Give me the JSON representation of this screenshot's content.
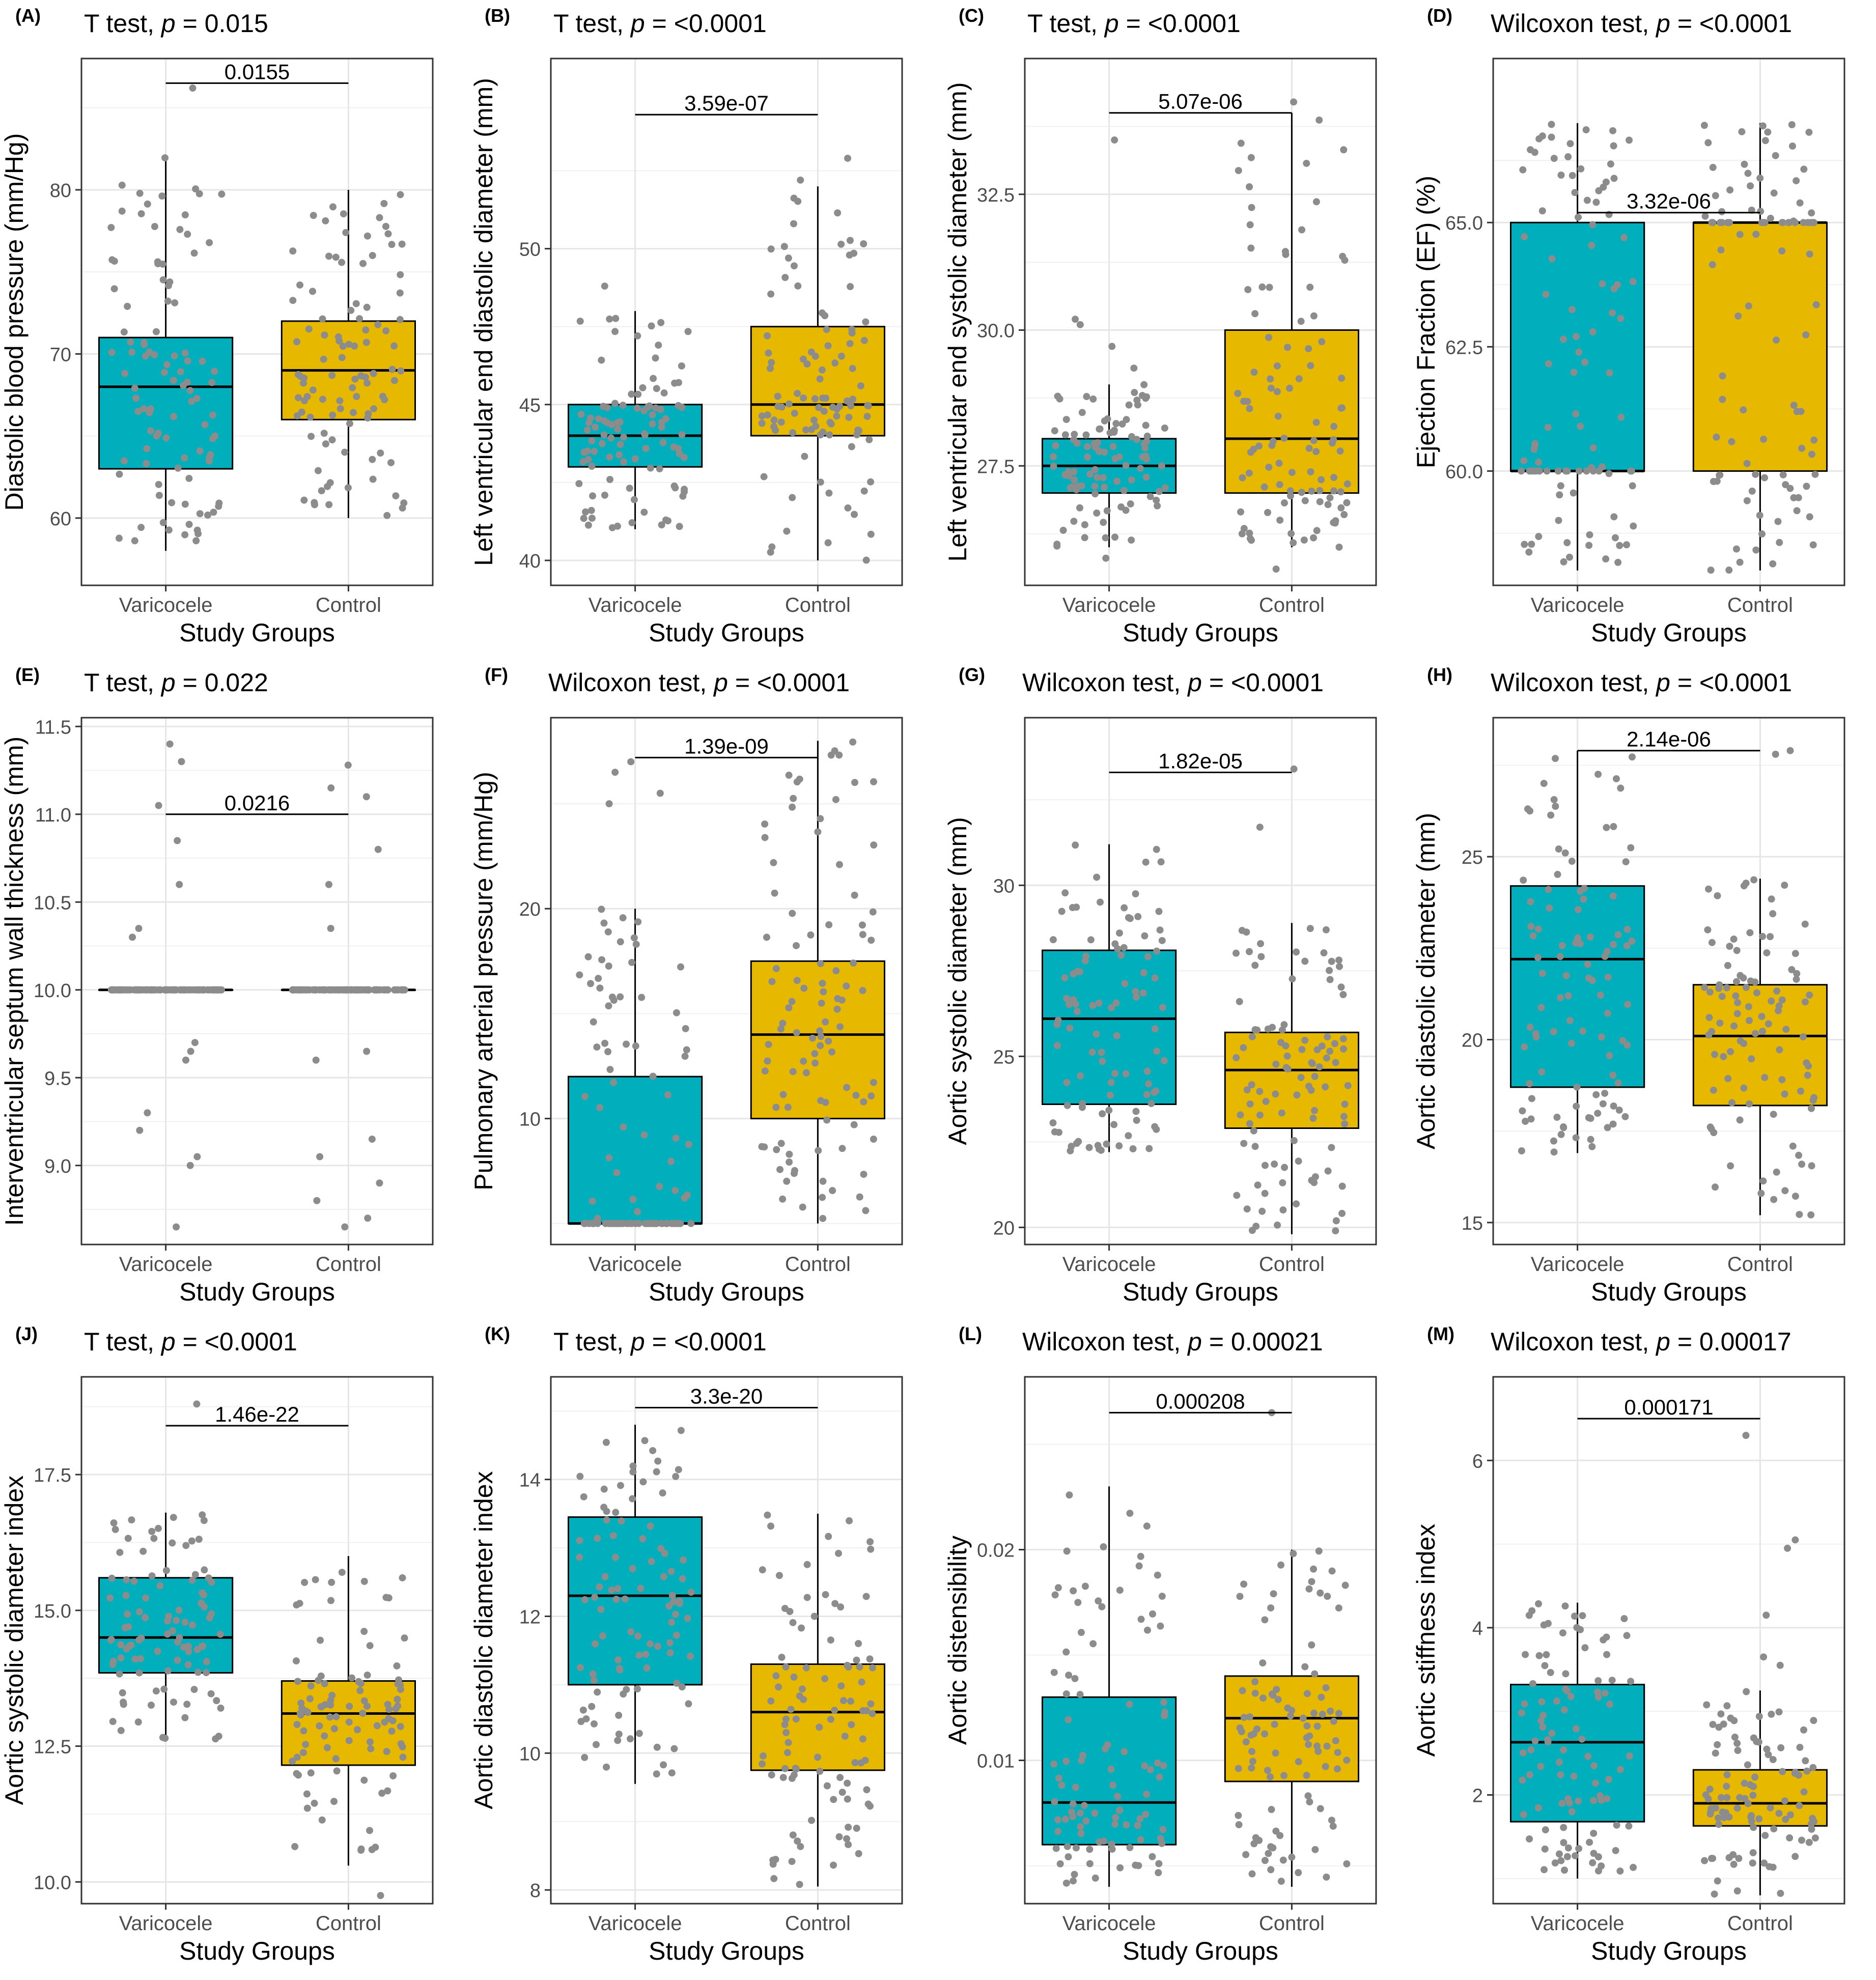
{
  "figure": {
    "x_title": "Study Groups",
    "group_labels": [
      "Varicocele",
      "Control"
    ],
    "colors": {
      "varicocele_fill": "#00AFBB",
      "control_fill": "#E7B800",
      "points": "#8C8C8C"
    }
  },
  "chart_data": [
    {
      "panel": "(A)",
      "type": "box",
      "test": "T test",
      "p": "0.015",
      "bracket": "0.0155",
      "ylabel": "Diastolic blood pressure (mm/Hg)",
      "ylim": [
        55.9,
        88.0
      ],
      "ticks": [
        60,
        70,
        80
      ],
      "tick_labels": [
        "60",
        "70",
        "80"
      ],
      "groups": [
        {
          "name": "Varicocele",
          "q1": 63,
          "median": 68,
          "q3": 71,
          "whisker_low": 58,
          "whisker_high": 82
        },
        {
          "name": "Control",
          "q1": 66,
          "median": 69,
          "q3": 72,
          "whisker_low": 60,
          "whisker_high": 80
        }
      ],
      "bracket_y": 86.5,
      "outliers": [
        [
          1,
          86.2
        ]
      ]
    },
    {
      "panel": "(B)",
      "type": "box",
      "test": "T test",
      "p": "<0.0001",
      "bracket": "3.59e-07",
      "ylabel": "Left ventricular end diastolic diameter (mm)",
      "ylim": [
        39.2,
        56.1
      ],
      "ticks": [
        40,
        45,
        50
      ],
      "tick_labels": [
        "40",
        "45",
        "50"
      ],
      "groups": [
        {
          "name": "Varicocele",
          "q1": 43,
          "median": 44,
          "q3": 45,
          "whisker_low": 41,
          "whisker_high": 48
        },
        {
          "name": "Control",
          "q1": 44,
          "median": 45,
          "q3": 47.5,
          "whisker_low": 40,
          "whisker_high": 52
        }
      ],
      "bracket_y": 54.3,
      "outliers": [
        [
          1,
          48.8
        ],
        [
          2,
          52.9
        ],
        [
          2,
          52.2
        ]
      ]
    },
    {
      "panel": "(C)",
      "type": "box",
      "test": "T test",
      "p": "<0.0001",
      "bracket": "5.07e-06",
      "ylabel": "Left ventricular end systolic diameter (mm)",
      "ylim": [
        25.3,
        35.0
      ],
      "ticks": [
        27.5,
        30.0,
        32.5
      ],
      "tick_labels": [
        "27.5",
        "30.0",
        "32.5"
      ],
      "groups": [
        {
          "name": "Varicocele",
          "q1": 27,
          "median": 27.5,
          "q3": 28,
          "whisker_low": 26,
          "whisker_high": 29
        },
        {
          "name": "Control",
          "q1": 27,
          "median": 28,
          "q3": 30,
          "whisker_low": 26,
          "whisker_high": 34
        }
      ],
      "bracket_y": 34.0,
      "outliers": [
        [
          1,
          30.2
        ],
        [
          1,
          30.1
        ],
        [
          1,
          29.7
        ],
        [
          1,
          29.3
        ],
        [
          1,
          33.5
        ],
        [
          1,
          25.8
        ],
        [
          2,
          34.2
        ],
        [
          2,
          25.6
        ]
      ]
    },
    {
      "panel": "(D)",
      "type": "box",
      "test": "Wilcoxon test",
      "p": "<0.0001",
      "bracket": "3.32e-06",
      "ylabel": "Ejection Fraction (EF) (%)",
      "ylim": [
        57.7,
        68.3
      ],
      "ticks": [
        60.0,
        62.5,
        65.0
      ],
      "tick_labels": [
        "60.0",
        "62.5",
        "65.0"
      ],
      "groups": [
        {
          "name": "Varicocele",
          "q1": 60,
          "median": 60,
          "q3": 65,
          "whisker_low": 58,
          "whisker_high": 67
        },
        {
          "name": "Control",
          "q1": 60,
          "median": 65,
          "q3": 65,
          "whisker_low": 58,
          "whisker_high": 67
        }
      ],
      "bracket_y": 65.2,
      "outliers": []
    },
    {
      "panel": "(E)",
      "type": "box",
      "test": "T test",
      "p": "0.022",
      "bracket": "0.0216",
      "ylabel": "Interventricular septum wall thickness (mm)",
      "ylim": [
        8.55,
        11.55
      ],
      "ticks": [
        9.0,
        9.5,
        10.0,
        10.5,
        11.0,
        11.5
      ],
      "tick_labels": [
        "9.0",
        "9.5",
        "10.0",
        "10.5",
        "11.0",
        "11.5"
      ],
      "groups": [
        {
          "name": "Varicocele",
          "q1": 10,
          "median": 10,
          "q3": 10,
          "whisker_low": 10,
          "whisker_high": 10
        },
        {
          "name": "Control",
          "q1": 10,
          "median": 10,
          "q3": 10,
          "whisker_low": 10,
          "whisker_high": 10
        }
      ],
      "bracket_y": 11.0,
      "outliers": [
        [
          1,
          11.4
        ],
        [
          1,
          11.3
        ],
        [
          1,
          11.05
        ],
        [
          1,
          10.85
        ],
        [
          1,
          10.6
        ],
        [
          1,
          10.35
        ],
        [
          1,
          10.3
        ],
        [
          1,
          9.7
        ],
        [
          1,
          9.65
        ],
        [
          1,
          9.6
        ],
        [
          1,
          9.3
        ],
        [
          1,
          9.2
        ],
        [
          1,
          9.05
        ],
        [
          1,
          9.0
        ],
        [
          1,
          8.65
        ],
        [
          2,
          11.28
        ],
        [
          2,
          11.15
        ],
        [
          2,
          11.1
        ],
        [
          2,
          10.8
        ],
        [
          2,
          10.6
        ],
        [
          2,
          10.35
        ],
        [
          2,
          9.65
        ],
        [
          2,
          9.6
        ],
        [
          2,
          9.15
        ],
        [
          2,
          9.05
        ],
        [
          2,
          8.9
        ],
        [
          2,
          8.8
        ],
        [
          2,
          8.7
        ],
        [
          2,
          8.65
        ]
      ]
    },
    {
      "panel": "(F)",
      "type": "box",
      "test": "Wilcoxon test",
      "p": "<0.0001",
      "bracket": "1.39e-09",
      "ylabel": "Pulmonary arterial pressure (mm/Hg)",
      "ylim": [
        4.0,
        29.1
      ],
      "ticks": [
        10,
        20
      ],
      "tick_labels": [
        "10",
        "20"
      ],
      "groups": [
        {
          "name": "Varicocele",
          "q1": 5,
          "median": 5,
          "q3": 12,
          "whisker_low": 5,
          "whisker_high": 20
        },
        {
          "name": "Control",
          "q1": 10,
          "median": 14,
          "q3": 17.5,
          "whisker_low": 5,
          "whisker_high": 28
        }
      ],
      "bracket_y": 27.2,
      "outliers": [
        [
          1,
          27.0
        ],
        [
          1,
          26.5
        ],
        [
          1,
          25.5
        ],
        [
          1,
          25.0
        ]
      ]
    },
    {
      "panel": "(G)",
      "type": "box",
      "test": "Wilcoxon test",
      "p": "<0.0001",
      "bracket": "1.82e-05",
      "ylabel": "Aortic systolic diameter (mm)",
      "ylim": [
        19.5,
        34.9
      ],
      "ticks": [
        20,
        25,
        30
      ],
      "tick_labels": [
        "20",
        "25",
        "30"
      ],
      "groups": [
        {
          "name": "Varicocele",
          "q1": 23.6,
          "median": 26.1,
          "q3": 28.1,
          "whisker_low": 22.2,
          "whisker_high": 31.2
        },
        {
          "name": "Control",
          "q1": 22.9,
          "median": 24.6,
          "q3": 25.7,
          "whisker_low": 19.8,
          "whisker_high": 28.9
        }
      ],
      "bracket_y": 33.3,
      "outliers": [
        [
          2,
          33.4
        ],
        [
          2,
          31.7
        ]
      ]
    },
    {
      "panel": "(H)",
      "type": "box",
      "test": "Wilcoxon test",
      "p": "<0.0001",
      "bracket": "2.14e-06",
      "ylabel": "Aortic diastolic diameter (mm)",
      "ylim": [
        14.4,
        28.8
      ],
      "ticks": [
        15,
        20,
        25
      ],
      "tick_labels": [
        "15",
        "20",
        "25"
      ],
      "groups": [
        {
          "name": "Varicocele",
          "q1": 18.7,
          "median": 22.2,
          "q3": 24.2,
          "whisker_low": 16.9,
          "whisker_high": 27.9
        },
        {
          "name": "Control",
          "q1": 18.2,
          "median": 20.1,
          "q3": 21.5,
          "whisker_low": 15.2,
          "whisker_high": 24.4
        }
      ],
      "bracket_y": 27.9,
      "outliers": [
        [
          2,
          27.9
        ],
        [
          2,
          27.8
        ]
      ]
    },
    {
      "panel": "(J)",
      "type": "box",
      "test": "T test",
      "p": "<0.0001",
      "bracket": "1.46e-22",
      "ylabel": "Aortic systolic diameter index",
      "ylim": [
        9.6,
        19.3
      ],
      "ticks": [
        10.0,
        12.5,
        15.0,
        17.5
      ],
      "tick_labels": [
        "10.0",
        "12.5",
        "15.0",
        "17.5"
      ],
      "groups": [
        {
          "name": "Varicocele",
          "q1": 13.85,
          "median": 14.5,
          "q3": 15.6,
          "whisker_low": 12.6,
          "whisker_high": 16.8
        },
        {
          "name": "Control",
          "q1": 12.15,
          "median": 13.1,
          "q3": 13.7,
          "whisker_low": 10.3,
          "whisker_high": 16.0
        }
      ],
      "bracket_y": 18.4,
      "outliers": [
        [
          1,
          18.8
        ],
        [
          2,
          9.75
        ]
      ]
    },
    {
      "panel": "(K)",
      "type": "box",
      "test": "T test",
      "p": "<0.0001",
      "bracket": "3.3e-20",
      "ylabel": "Aortic diastolic diameter index",
      "ylim": [
        7.8,
        15.5
      ],
      "ticks": [
        8,
        10,
        12,
        14
      ],
      "tick_labels": [
        "8",
        "10",
        "12",
        "14"
      ],
      "groups": [
        {
          "name": "Varicocele",
          "q1": 11.0,
          "median": 12.3,
          "q3": 13.45,
          "whisker_low": 9.55,
          "whisker_high": 14.8
        },
        {
          "name": "Control",
          "q1": 9.75,
          "median": 10.6,
          "q3": 11.3,
          "whisker_low": 8.05,
          "whisker_high": 13.5
        }
      ],
      "bracket_y": 15.05,
      "outliers": []
    },
    {
      "panel": "(L)",
      "type": "box",
      "test": "Wilcoxon test",
      "p": "0.00021",
      "bracket": "0.000208",
      "ylabel": "Aortic distensibility",
      "ylim": [
        0.0032,
        0.0282
      ],
      "ticks": [
        0.01,
        0.02
      ],
      "tick_labels": [
        "0.01",
        "0.02"
      ],
      "groups": [
        {
          "name": "Varicocele",
          "q1": 0.006,
          "median": 0.008,
          "q3": 0.013,
          "whisker_low": 0.004,
          "whisker_high": 0.023
        },
        {
          "name": "Control",
          "q1": 0.009,
          "median": 0.012,
          "q3": 0.014,
          "whisker_low": 0.004,
          "whisker_high": 0.02
        },
        {
          "name": "_dummy",
          "skip": true
        }
      ],
      "bracket_y": 0.0265,
      "outliers": [
        [
          2,
          0.0265
        ]
      ]
    },
    {
      "panel": "(M)",
      "type": "box",
      "test": "Wilcoxon test",
      "p": "0.00017",
      "bracket": "0.000171",
      "ylabel": "Aortic stiffness index",
      "ylim": [
        0.7,
        7.0
      ],
      "ticks": [
        2,
        4,
        6
      ],
      "tick_labels": [
        "2",
        "4",
        "6"
      ],
      "groups": [
        {
          "name": "Varicocele",
          "q1": 1.68,
          "median": 2.63,
          "q3": 3.32,
          "whisker_low": 1.0,
          "whisker_high": 4.3
        },
        {
          "name": "Control",
          "q1": 1.63,
          "median": 1.9,
          "q3": 2.3,
          "whisker_low": 0.8,
          "whisker_high": 3.25
        },
        {
          "name": "_dummy",
          "skip": true
        }
      ],
      "bracket_y": 6.5,
      "outliers": [
        [
          2,
          6.3
        ],
        [
          2,
          5.05
        ],
        [
          2,
          4.95
        ],
        [
          2,
          4.15
        ],
        [
          2,
          3.65
        ],
        [
          2,
          3.55
        ]
      ]
    }
  ]
}
